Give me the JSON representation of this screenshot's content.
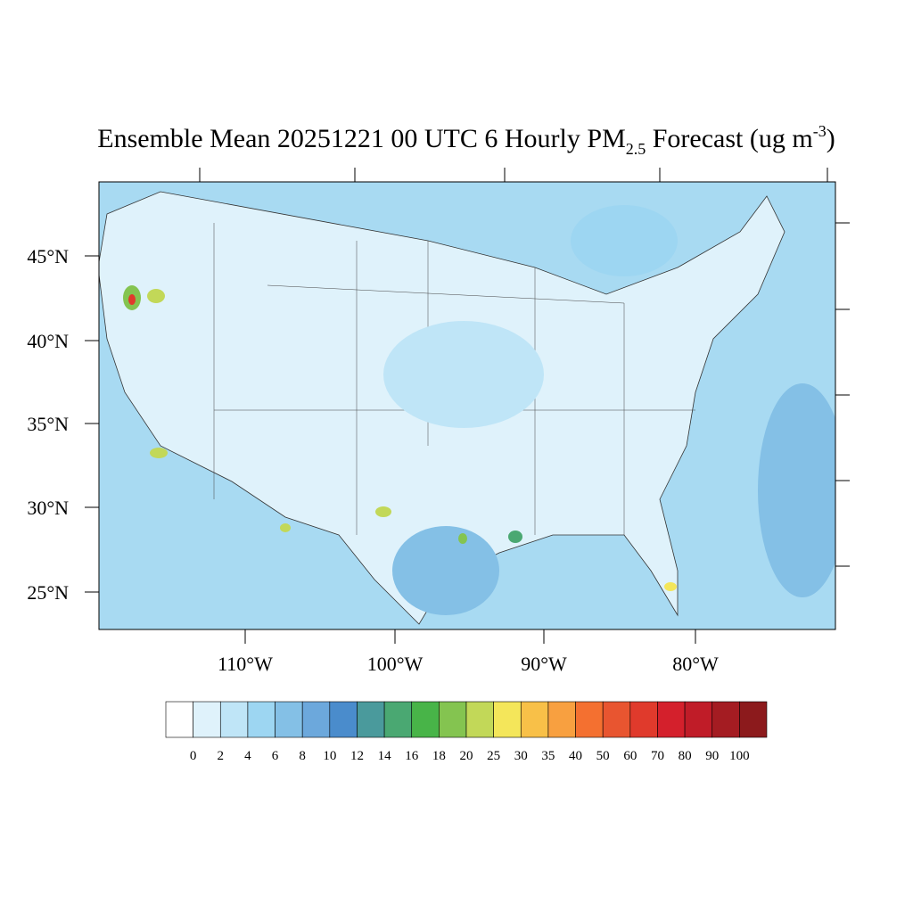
{
  "title": {
    "main": "Ensemble Mean 20251221 00 UTC 6 Hourly PM",
    "sub": "2.5",
    "mid": " Forecast (ug m",
    "sup": "-3",
    "end": ")"
  },
  "lat_labels": [
    "45°N",
    "40°N",
    "35°N",
    "30°N",
    "25°N"
  ],
  "lon_labels": [
    "110°W",
    "100°W",
    "90°W",
    "80°W"
  ],
  "colorbar": {
    "colors": [
      "#ffffff",
      "#dff2fb",
      "#bfe5f7",
      "#9dd6f2",
      "#84c0e6",
      "#6ca8dc",
      "#4a8ccc",
      "#4a9a9c",
      "#4aa872",
      "#48b448",
      "#84c450",
      "#c2d858",
      "#f4e65a",
      "#f8c048",
      "#f8a040",
      "#f47030",
      "#e85530",
      "#e03a2c",
      "#d4202c",
      "#c01c28",
      "#a41c22",
      "#8c1a1c"
    ],
    "labels": [
      0,
      2,
      4,
      6,
      8,
      10,
      12,
      14,
      16,
      18,
      20,
      25,
      30,
      35,
      40,
      50,
      60,
      70,
      80,
      90,
      100
    ]
  }
}
